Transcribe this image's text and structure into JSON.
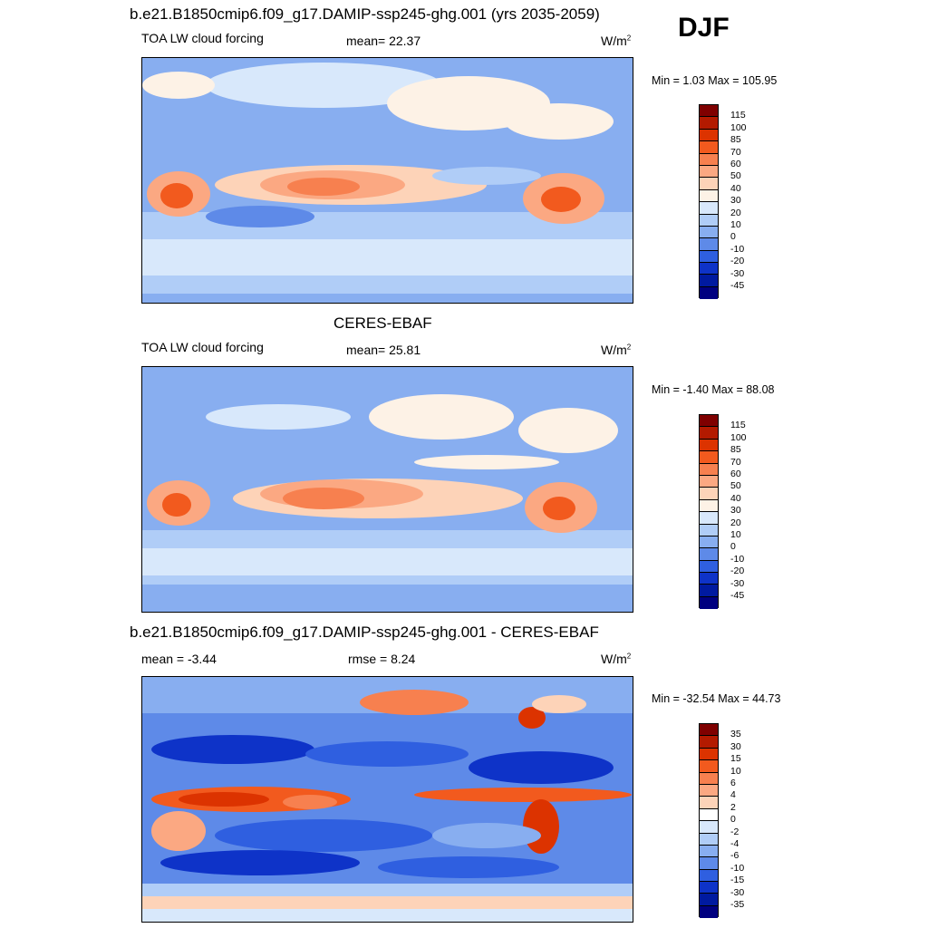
{
  "season": "DJF",
  "panels": [
    {
      "title": "b.e21.B1850cmip6.f09_g17.DAMIP-ssp245-ghg.001 (yrs 2035-2059)",
      "left_label": "TOA LW cloud forcing",
      "center_label": "mean=  22.37",
      "units_base": "W/m",
      "units_exp": "2",
      "minmax": "Min =   1.03 Max = 105.95",
      "colorbar_labels": [
        "115",
        "100",
        "85",
        "70",
        "60",
        "50",
        "40",
        "30",
        "20",
        "10",
        "0",
        "-10",
        "-20",
        "-30",
        "-45"
      ]
    },
    {
      "title": "CERES-EBAF",
      "left_label": "TOA LW cloud forcing",
      "center_label": "mean=  25.81",
      "units_base": "W/m",
      "units_exp": "2",
      "minmax": "Min =  -1.40 Max =  88.08",
      "colorbar_labels": [
        "115",
        "100",
        "85",
        "70",
        "60",
        "50",
        "40",
        "30",
        "20",
        "10",
        "0",
        "-10",
        "-20",
        "-30",
        "-45"
      ]
    },
    {
      "title": "b.e21.B1850cmip6.f09_g17.DAMIP-ssp245-ghg.001 - CERES-EBAF",
      "left_label": "mean =  -3.44",
      "center_label": "rmse =    8.24",
      "units_base": "W/m",
      "units_exp": "2",
      "minmax": "Min = -32.54 Max =  44.73",
      "colorbar_labels": [
        "35",
        "30",
        "15",
        "10",
        "6",
        "4",
        "2",
        "0",
        "-2",
        "-4",
        "-6",
        "-10",
        "-15",
        "-30",
        "-35"
      ]
    }
  ],
  "colors": {
    "abs_scale": [
      "#7f0000",
      "#b31a00",
      "#dc3300",
      "#f25a1e",
      "#f7804f",
      "#fba882",
      "#fdd3b8",
      "#fdf2e6",
      "#d8e8fb",
      "#b0cdf7",
      "#88aef0",
      "#5e8ae8",
      "#2f5fe0",
      "#0e33c8",
      "#001aa0",
      "#000080"
    ],
    "diff_scale": [
      "#7f0000",
      "#b31a00",
      "#dc3300",
      "#f25a1e",
      "#f7804f",
      "#fba882",
      "#fdd3b8",
      "#ffffff",
      "#d8e8fb",
      "#b0cdf7",
      "#88aef0",
      "#5e8ae8",
      "#2f5fe0",
      "#0e33c8",
      "#001aa0",
      "#000080"
    ]
  },
  "chart_data": [
    {
      "type": "heatmap",
      "title": "b.e21.B1850cmip6.f09_g17.DAMIP-ssp245-ghg.001 (yrs 2035-2059)",
      "variable": "TOA LW cloud forcing",
      "units": "W/m2",
      "mean": 22.37,
      "min": 1.03,
      "max": 105.95,
      "contour_levels": [
        -45,
        -30,
        -20,
        -10,
        0,
        10,
        20,
        30,
        40,
        50,
        60,
        70,
        85,
        100,
        115
      ],
      "projection": "cylindrical equidistant, Pacific centered"
    },
    {
      "type": "heatmap",
      "title": "CERES-EBAF",
      "variable": "TOA LW cloud forcing",
      "units": "W/m2",
      "mean": 25.81,
      "min": -1.4,
      "max": 88.08,
      "contour_levels": [
        -45,
        -30,
        -20,
        -10,
        0,
        10,
        20,
        30,
        40,
        50,
        60,
        70,
        85,
        100,
        115
      ],
      "projection": "cylindrical equidistant, Pacific centered"
    },
    {
      "type": "heatmap",
      "title": "b.e21.B1850cmip6.f09_g17.DAMIP-ssp245-ghg.001 - CERES-EBAF",
      "units": "W/m2",
      "mean": -3.44,
      "rmse": 8.24,
      "min": -32.54,
      "max": 44.73,
      "contour_levels": [
        -35,
        -30,
        -15,
        -10,
        -6,
        -4,
        -2,
        0,
        2,
        4,
        6,
        10,
        15,
        30,
        35
      ],
      "projection": "cylindrical equidistant, Pacific centered"
    }
  ]
}
